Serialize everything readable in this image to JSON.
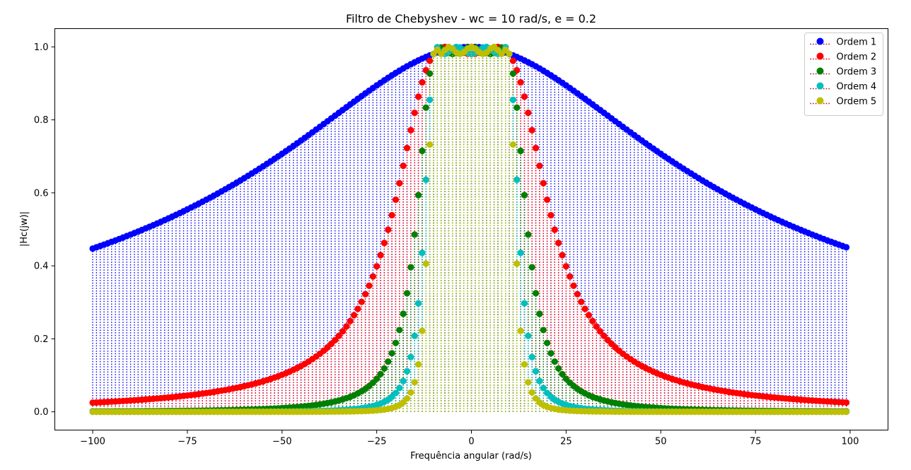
{
  "chart_data": {
    "type": "scatter",
    "style": "stem",
    "title": "Filtro de Chebyshev - wc = 10 rad/s, e = 0.2",
    "xlabel": "Frequência angular (rad/s)",
    "ylabel": "|Hc(jw)|",
    "xlim": [
      -110,
      110
    ],
    "ylim": [
      -0.05,
      1.05
    ],
    "xticks": [
      -100,
      -75,
      -50,
      -25,
      0,
      25,
      50,
      75,
      100
    ],
    "xtick_labels": [
      "−100",
      "−75",
      "−50",
      "−25",
      "0",
      "25",
      "50",
      "75",
      "100"
    ],
    "yticks": [
      0.0,
      0.2,
      0.4,
      0.6,
      0.8,
      1.0
    ],
    "ytick_labels": [
      "0.0",
      "0.2",
      "0.4",
      "0.6",
      "0.8",
      "1.0"
    ],
    "grid": false,
    "legend_position": "upper-right",
    "stem_line_color": "#c00000",
    "x": {
      "start": -100,
      "stop": 99,
      "step": 1
    },
    "epsilon": 0.2,
    "wc": 10,
    "series": [
      {
        "name": "Ordem 1",
        "order": 1,
        "color": "#0000ff"
      },
      {
        "name": "Ordem 2",
        "order": 2,
        "color": "#ff0000"
      },
      {
        "name": "Ordem 3",
        "order": 3,
        "color": "#008000"
      },
      {
        "name": "Ordem 4",
        "order": 4,
        "color": "#00bfbf"
      },
      {
        "name": "Ordem 5",
        "order": 5,
        "color": "#bfbf00"
      }
    ]
  }
}
